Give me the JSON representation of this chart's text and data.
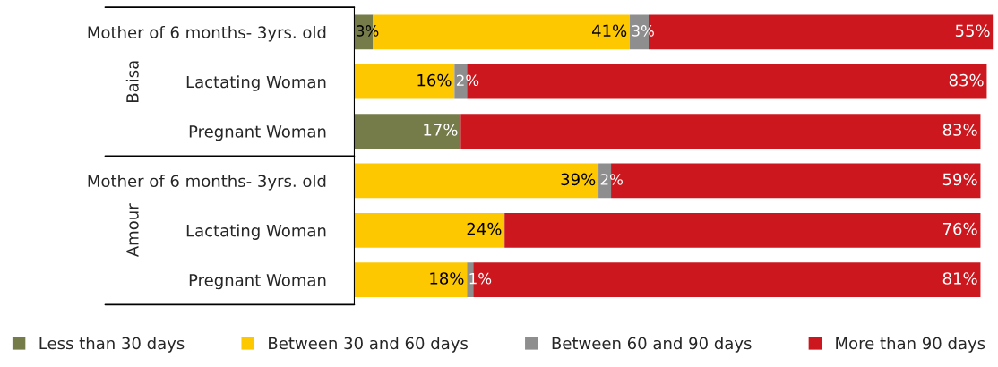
{
  "chart_data": {
    "type": "bar",
    "orientation": "horizontal",
    "stacked": true,
    "tick_labels": "y",
    "grid": false,
    "legend": "bottom",
    "categories": [
      "Mother of 6 months- 3yrs. old",
      "Lactating Woman",
      "Pregnant Woman",
      "Mother of 6 months- 3yrs. old",
      "Lactating Woman",
      "Pregnant Woman"
    ],
    "annotations": [
      "Baisa",
      "Amour"
    ],
    "series": [
      {
        "name": "Less than 30 days",
        "color": "#767b4a",
        "values": [
          3,
          null,
          17,
          null,
          null,
          null
        ],
        "value_labels": [
          "3%",
          null,
          "17%",
          null,
          null,
          null
        ]
      },
      {
        "name": "Between 30 and 60 days",
        "color": "#fdc800",
        "values": [
          41,
          16,
          null,
          39,
          24,
          18
        ],
        "value_labels": [
          "41%",
          "16%",
          null,
          "39%",
          "24%",
          "18%"
        ]
      },
      {
        "name": "Between 60 and 90 days",
        "color": "#8e8e8e",
        "values": [
          3,
          2,
          null,
          2,
          null,
          1
        ],
        "value_labels": [
          "3%",
          "2%",
          null,
          "2%",
          null,
          "1%"
        ]
      },
      {
        "name": "More than 90 days",
        "color": "#cd171e",
        "values": [
          55,
          83,
          83,
          59,
          76,
          81
        ],
        "value_labels": [
          "55%",
          "83%",
          "83%",
          "59%",
          "76%",
          "81%"
        ]
      }
    ]
  }
}
